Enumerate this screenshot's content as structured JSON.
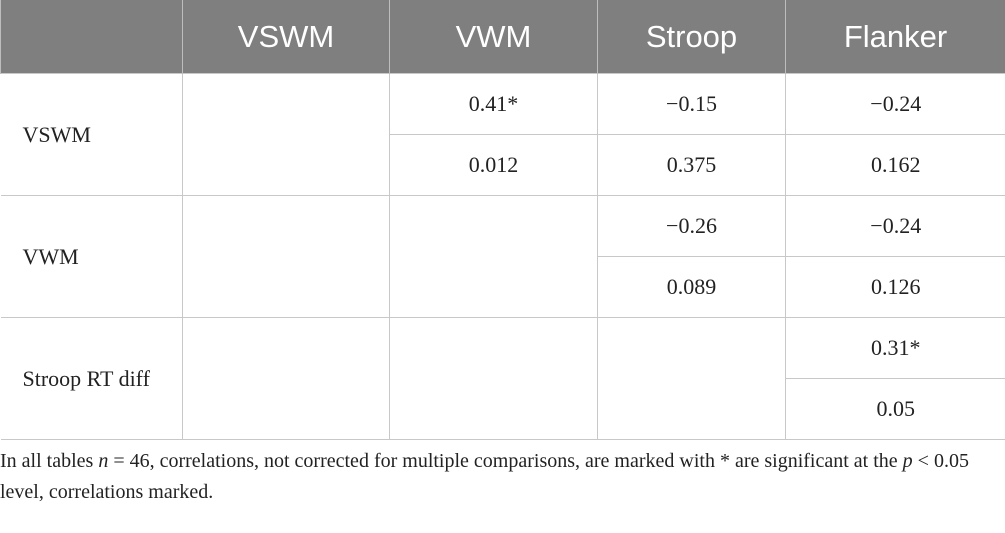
{
  "table": {
    "header": [
      "VSWM",
      "VWM",
      "Stroop",
      "Flanker"
    ],
    "rows": [
      {
        "label": "VSWM",
        "cells": [
          null,
          {
            "r": "0.41*",
            "p": "0.012"
          },
          {
            "r": "−0.15",
            "p": "0.375"
          },
          {
            "r": "−0.24",
            "p": "0.162"
          }
        ]
      },
      {
        "label": "VWM",
        "cells": [
          null,
          null,
          {
            "r": "−0.26",
            "p": "0.089"
          },
          {
            "r": "−0.24",
            "p": "0.126"
          }
        ]
      },
      {
        "label": "Stroop RT diff",
        "cells": [
          null,
          null,
          null,
          {
            "r": "0.31*",
            "p": "0.05"
          }
        ]
      }
    ]
  },
  "footnote": {
    "segments": [
      {
        "text": "In all tables "
      },
      {
        "text": "n",
        "italic": true
      },
      {
        "text": " = 46, correlations, not corrected for multiple comparisons, are marked with * are significant at the "
      },
      {
        "text": "p",
        "italic": true
      },
      {
        "text": " < 0.05 level, correlations marked."
      }
    ]
  }
}
